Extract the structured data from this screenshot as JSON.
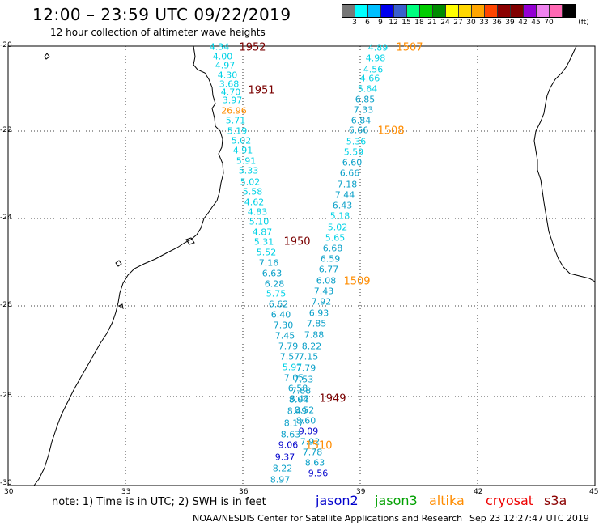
{
  "title": "12:00 – 23:59 UTC 09/22/2019",
  "subtitle": "12 hour collection of altimeter wave heights",
  "colorbar": {
    "unit": "(ft)",
    "colors": [
      "#777777",
      "#00ffff",
      "#00bfff",
      "#0000ee",
      "#3a5fcd",
      "#00ff7f",
      "#00cd00",
      "#008b00",
      "#ffff00",
      "#ffd700",
      "#ffa500",
      "#ff4500",
      "#8b0000",
      "#800000",
      "#9400d3",
      "#ee82ee",
      "#ff69b4",
      "#000000"
    ],
    "labels": [
      "3",
      "6",
      "9",
      "12",
      "15",
      "18",
      "21",
      "24",
      "27",
      "30",
      "33",
      "36",
      "39",
      "42",
      "45",
      "70"
    ]
  },
  "map": {
    "lat_labels": [
      "-20",
      "-22",
      "-24",
      "-26",
      "-28",
      "-30"
    ],
    "lon_labels": [
      "30",
      "33",
      "36",
      "39",
      "42",
      "45"
    ]
  },
  "tracks": [
    {
      "orbit": "1952",
      "color": "#7a0000",
      "label_pos": [
        312,
        59
      ],
      "points": [
        {
          "v": "4.34",
          "p": [
            271,
            58
          ]
        },
        {
          "v": "4.00",
          "p": [
            275,
            70
          ]
        },
        {
          "v": "4.97",
          "p": [
            278,
            81
          ]
        },
        {
          "v": "4.30",
          "p": [
            281,
            93
          ]
        },
        {
          "v": "3.68",
          "p": [
            283,
            104
          ]
        },
        {
          "v": "4.70",
          "p": [
            285,
            114
          ]
        },
        {
          "v": "3.97",
          "p": [
            287,
            124
          ]
        },
        {
          "v": "26.96",
          "p": [
            289,
            137
          ]
        },
        {
          "v": "5.71",
          "p": [
            291,
            149
          ]
        },
        {
          "v": "5.19",
          "p": [
            293,
            162
          ]
        },
        {
          "v": "5.02",
          "p": [
            298,
            174
          ]
        },
        {
          "v": "4.91",
          "p": [
            300,
            186
          ]
        },
        {
          "v": "5.91",
          "p": [
            304,
            199
          ]
        },
        {
          "v": "5.33",
          "p": [
            307,
            211
          ]
        },
        {
          "v": "5.02",
          "p": [
            309,
            225
          ]
        },
        {
          "v": "5.58",
          "p": [
            312,
            237
          ]
        },
        {
          "v": "4.62",
          "p": [
            314,
            250
          ]
        },
        {
          "v": "4.83",
          "p": [
            318,
            262
          ]
        }
      ]
    },
    {
      "orbit": "1951",
      "color": "#7a0000",
      "label_pos": [
        323,
        112
      ],
      "points": []
    },
    {
      "orbit": "1950",
      "color": "#7a0000",
      "label_pos": [
        367,
        299
      ],
      "points": [
        {
          "v": "5.10",
          "p": [
            320,
            274
          ]
        },
        {
          "v": "4.87",
          "p": [
            324,
            287
          ]
        },
        {
          "v": "5.31",
          "p": [
            326,
            299
          ]
        },
        {
          "v": "5.52",
          "p": [
            329,
            312
          ]
        },
        {
          "v": "7.16",
          "p": [
            332,
            325
          ]
        },
        {
          "v": "6.63",
          "p": [
            336,
            338
          ]
        },
        {
          "v": "6.28",
          "p": [
            339,
            351
          ]
        },
        {
          "v": "5.75",
          "p": [
            341,
            363
          ]
        },
        {
          "v": "6.62",
          "p": [
            344,
            376
          ]
        },
        {
          "v": "6.40",
          "p": [
            347,
            389
          ]
        },
        {
          "v": "7.30",
          "p": [
            350,
            402
          ]
        },
        {
          "v": "7.45",
          "p": [
            352,
            415
          ]
        },
        {
          "v": "7.79",
          "p": [
            356,
            428
          ]
        },
        {
          "v": "7.57",
          "p": [
            358,
            441
          ]
        },
        {
          "v": "5.97",
          "p": [
            361,
            454
          ]
        },
        {
          "v": "7.05",
          "p": [
            363,
            467
          ]
        },
        {
          "v": "6.58",
          "p": [
            368,
            480
          ]
        },
        {
          "v": "8.04",
          "p": [
            369,
            494
          ]
        },
        {
          "v": "8.49",
          "p": [
            367,
            508
          ]
        },
        {
          "v": "8.17",
          "p": [
            363,
            523
          ]
        },
        {
          "v": "8.63",
          "p": [
            359,
            537
          ]
        },
        {
          "v": "9.06",
          "p": [
            356,
            550
          ]
        },
        {
          "v": "9.37",
          "p": [
            352,
            565
          ]
        },
        {
          "v": "8.22",
          "p": [
            349,
            579
          ]
        },
        {
          "v": "8.97",
          "p": [
            346,
            593
          ]
        }
      ]
    },
    {
      "orbit": "1949",
      "color": "#7a0000",
      "label_pos": [
        411,
        493
      ],
      "points": []
    },
    {
      "orbit": "1507",
      "color": "#ff8c00",
      "label_pos": [
        506,
        59
      ],
      "points": [
        {
          "v": "4.89",
          "p": [
            467,
            59
          ]
        },
        {
          "v": "4.98",
          "p": [
            464,
            72
          ]
        },
        {
          "v": "4.56",
          "p": [
            461,
            86
          ]
        },
        {
          "v": "4.66",
          "p": [
            457,
            97
          ]
        },
        {
          "v": "5.64",
          "p": [
            454,
            110
          ]
        },
        {
          "v": "6.85",
          "p": [
            451,
            123
          ]
        },
        {
          "v": "7.33",
          "p": [
            449,
            136
          ]
        },
        {
          "v": "6.84",
          "p": [
            446,
            149
          ]
        },
        {
          "v": "6.66",
          "p": [
            443,
            161
          ]
        },
        {
          "v": "5.36",
          "p": [
            440,
            175
          ]
        },
        {
          "v": "5.59",
          "p": [
            437,
            188
          ]
        },
        {
          "v": "6.60",
          "p": [
            435,
            201
          ]
        },
        {
          "v": "6.66",
          "p": [
            432,
            214
          ]
        },
        {
          "v": "7.18",
          "p": [
            429,
            228
          ]
        },
        {
          "v": "7.44",
          "p": [
            426,
            241
          ]
        },
        {
          "v": "6.43",
          "p": [
            423,
            254
          ]
        },
        {
          "v": "5.18",
          "p": [
            420,
            267
          ]
        },
        {
          "v": "5.02",
          "p": [
            417,
            281
          ]
        },
        {
          "v": "5.65",
          "p": [
            414,
            294
          ]
        },
        {
          "v": "6.68",
          "p": [
            411,
            307
          ]
        },
        {
          "v": "6.59",
          "p": [
            408,
            320
          ]
        },
        {
          "v": "6.77",
          "p": [
            406,
            333
          ]
        },
        {
          "v": "6.08",
          "p": [
            403,
            347
          ]
        },
        {
          "v": "7.43",
          "p": [
            400,
            360
          ]
        },
        {
          "v": "7.92",
          "p": [
            397,
            373
          ]
        },
        {
          "v": "6.93",
          "p": [
            394,
            387
          ]
        },
        {
          "v": "7.85",
          "p": [
            391,
            400
          ]
        },
        {
          "v": "7.88",
          "p": [
            388,
            414
          ]
        },
        {
          "v": "8.22",
          "p": [
            385,
            428
          ]
        },
        {
          "v": "7.15",
          "p": [
            381,
            441
          ]
        },
        {
          "v": "7.79",
          "p": [
            378,
            455
          ]
        },
        {
          "v": "7.53",
          "p": [
            375,
            469
          ]
        },
        {
          "v": "7.88",
          "p": [
            372,
            483
          ]
        },
        {
          "v": "8.42",
          "p": [
            370,
            493
          ]
        },
        {
          "v": "8.52",
          "p": [
            376,
            507
          ]
        },
        {
          "v": "8.60",
          "p": [
            378,
            520
          ]
        },
        {
          "v": "9.09",
          "p": [
            381,
            533
          ]
        },
        {
          "v": "7.92",
          "p": [
            383,
            546
          ]
        },
        {
          "v": "7.78",
          "p": [
            386,
            559
          ]
        },
        {
          "v": "8.63",
          "p": [
            389,
            572
          ]
        },
        {
          "v": "9.56",
          "p": [
            393,
            585
          ]
        }
      ]
    },
    {
      "orbit": "1508",
      "color": "#ff8c00",
      "label_pos": [
        483,
        162
      ],
      "points": []
    },
    {
      "orbit": "1509",
      "color": "#ff8c00",
      "label_pos": [
        441,
        348
      ],
      "points": []
    },
    {
      "orbit": "1510",
      "color": "#ff8c00",
      "label_pos": [
        394,
        551
      ],
      "points": []
    }
  ],
  "note": "note: 1) Time is in UTC; 2) SWH is in feet",
  "legend": [
    {
      "label": "jason2",
      "color": "#0000cc"
    },
    {
      "label": "jason3",
      "color": "#00a000"
    },
    {
      "label": "altika",
      "color": "#ff8c00"
    },
    {
      "label": "cryosat",
      "color": "#ee0000"
    },
    {
      "label": "s3a",
      "color": "#8b0000"
    }
  ],
  "credit": "NOAA/NESDIS Center for Satellite Applications and Research",
  "timestamp": "Sep 23 12:27:47 UTC 2019"
}
